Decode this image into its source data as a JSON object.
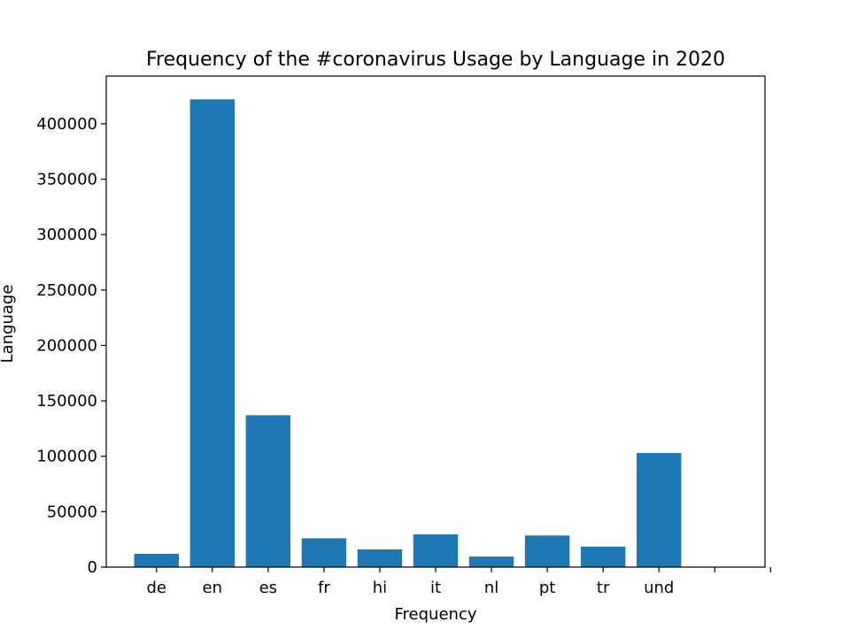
{
  "chart_data": {
    "type": "bar",
    "title": "Frequency of the #coronavirus Usage by Language in 2020",
    "xlabel": "Frequency",
    "ylabel": "Language",
    "categories": [
      "de",
      "en",
      "es",
      "fr",
      "hi",
      "it",
      "nl",
      "pt",
      "tr",
      "und"
    ],
    "values": [
      12000,
      422000,
      137000,
      26000,
      16000,
      29500,
      9500,
      28500,
      18500,
      103000
    ],
    "ylim": [
      0,
      443000
    ],
    "yticks": [
      0,
      50000,
      100000,
      150000,
      200000,
      250000,
      300000,
      350000,
      400000
    ],
    "xlim": [
      -0.9,
      10.9
    ],
    "extra_xticks": [
      10,
      11
    ],
    "grid": false,
    "legend": "none",
    "bar_color": "#1f77b4"
  }
}
